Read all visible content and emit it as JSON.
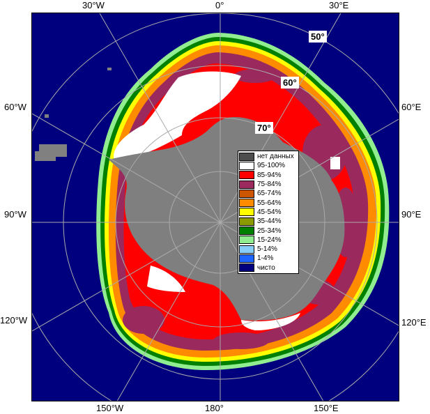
{
  "map": {
    "longitude_labels": {
      "30W_top": "30°W",
      "0_top": "0°",
      "30E_top": "30°E",
      "60W": "60°W",
      "60E": "60°E",
      "90W": "90°W",
      "90E": "90°E",
      "120W": "120°W",
      "120E": "120°E",
      "150W_bottom": "150°W",
      "180_bottom": "180°",
      "150E_bottom": "150°E"
    },
    "latitude_labels": {
      "lat50": "50°",
      "lat60": "60°",
      "lat70": "70°"
    },
    "colors": {
      "ocean": "#00007f",
      "land": "#7f7f7f",
      "no_data": "#4d4d4d",
      "grid": "#aaaaaa"
    }
  },
  "legend": {
    "items": [
      {
        "label": "нет данных",
        "color": "#4d4d4d"
      },
      {
        "label": "95-100%",
        "color": "#ffffff"
      },
      {
        "label": "85-94%",
        "color": "#ff0000"
      },
      {
        "label": "75-84%",
        "color": "#9a2a5e"
      },
      {
        "label": "65-74%",
        "color": "#cc5500"
      },
      {
        "label": "55-64%",
        "color": "#ff8c00"
      },
      {
        "label": "45-54%",
        "color": "#ffff00"
      },
      {
        "label": "35-44%",
        "color": "#8b9a00"
      },
      {
        "label": "25-34%",
        "color": "#008000"
      },
      {
        "label": "15-24%",
        "color": "#90ee90"
      },
      {
        "label": "5-14%",
        "color": "#87cefa"
      },
      {
        "label": "1-4%",
        "color": "#1e64ff"
      },
      {
        "label": "чисто",
        "color": "#00007f"
      }
    ]
  }
}
